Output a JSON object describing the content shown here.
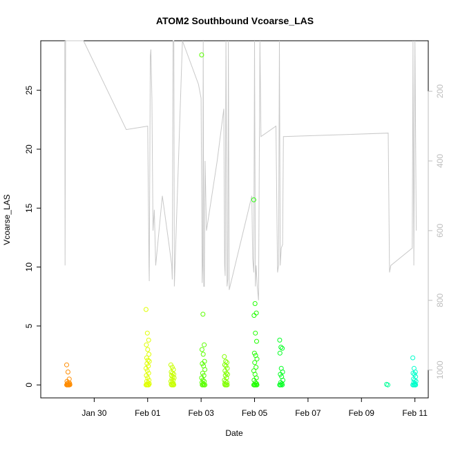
{
  "chart_data": {
    "type": "scatter",
    "title": "ATOM2 Southbound Vcoarse_LAS",
    "xlabel": "Date",
    "ylabel": "Vcoarse_LAS",
    "xlim": [
      "Jan 28 00:00",
      "Feb 11 12:00"
    ],
    "ylim": [
      -1.1,
      29.2
    ],
    "x_ticks": [
      {
        "label": "Jan 30",
        "day": 2
      },
      {
        "label": "Feb 01",
        "day": 4
      },
      {
        "label": "Feb 03",
        "day": 6
      },
      {
        "label": "Feb 05",
        "day": 8
      },
      {
        "label": "Feb 07",
        "day": 10
      },
      {
        "label": "Feb 09",
        "day": 12
      },
      {
        "label": "Feb 11",
        "day": 14
      }
    ],
    "y_ticks": [
      0,
      5,
      10,
      15,
      20,
      25
    ],
    "right_axis": {
      "ticks": [
        200,
        400,
        600,
        800,
        1000
      ],
      "range_reversed": [
        55,
        1080
      ],
      "color": "#bdbdbd"
    },
    "grid": false,
    "legend": "none",
    "point_colors": {
      "jan29": "#ff8c00",
      "feb01": "#e0ff00",
      "feb02": "#c8ff00",
      "feb03": "#5aff00",
      "feb04": "#80ff00",
      "feb05": "#20ff00",
      "feb06": "#00ff20",
      "feb10": "#00ff99",
      "feb11": "#00ffcc"
    },
    "scatter_groups": [
      {
        "color_key": "jan29",
        "day": 1.03,
        "values": [
          1.7,
          1.1,
          0.5,
          0.3,
          0.2,
          0.15,
          0.1,
          0.05,
          0.02,
          0.01,
          0,
          0,
          0,
          0,
          0
        ]
      },
      {
        "color_key": "feb01",
        "day": 4.0,
        "values": [
          6.4,
          4.4,
          3.8,
          3.4,
          3.0,
          2.6,
          2.3,
          2.1,
          2.0,
          1.8,
          1.6,
          1.4,
          1.2,
          1.0,
          0.8,
          0.6,
          0.4,
          0.3,
          0.2,
          0.1,
          0.05,
          0,
          0,
          0,
          0,
          0
        ]
      },
      {
        "color_key": "feb02",
        "day": 4.93,
        "values": [
          1.7,
          1.5,
          1.3,
          1.1,
          1.0,
          0.9,
          0.8,
          0.7,
          0.6,
          0.5,
          0.4,
          0.3,
          0.2,
          0.1,
          0.05,
          0,
          0,
          0,
          0
        ]
      },
      {
        "color_key": "feb03",
        "day": 6.08,
        "values": [
          28.0,
          6.0,
          3.4,
          3.0,
          2.6,
          2.0,
          1.8,
          1.6,
          1.3,
          1.0,
          0.8,
          0.6,
          0.4,
          0.3,
          0.2,
          0.1,
          0,
          0,
          0,
          0,
          0
        ]
      },
      {
        "color_key": "feb04",
        "day": 6.93,
        "values": [
          2.4,
          2.0,
          1.9,
          1.7,
          1.6,
          1.4,
          1.2,
          1.0,
          0.9,
          0.8,
          0.6,
          0.4,
          0.3,
          0.2,
          0.1,
          0,
          0,
          0,
          0
        ]
      },
      {
        "color_key": "feb05",
        "day": 8.03,
        "values": [
          15.7,
          6.9,
          6.1,
          5.9,
          4.4,
          3.7,
          2.7,
          2.5,
          2.2,
          1.9,
          1.5,
          1.2,
          0.9,
          0.6,
          0.4,
          0.2,
          0.1,
          0,
          0,
          0,
          0,
          0,
          0
        ]
      },
      {
        "color_key": "feb06",
        "day": 9.0,
        "values": [
          3.8,
          3.2,
          3.1,
          2.7,
          1.4,
          1.1,
          0.9,
          0.7,
          0.4,
          0.2,
          0.1,
          0,
          0,
          0,
          0
        ]
      },
      {
        "color_key": "feb10",
        "day": 13.0,
        "values": [
          0.05,
          0.0
        ]
      },
      {
        "color_key": "feb11",
        "day": 13.98,
        "values": [
          2.3,
          1.4,
          1.1,
          1.0,
          0.9,
          0.7,
          0.5,
          0.4,
          0.3,
          0.2,
          0.1,
          0,
          0,
          0,
          0,
          0,
          0
        ]
      }
    ],
    "altitude_line": {
      "color": "#c8c8c8",
      "points": [
        [
          0.9,
          0
        ],
        [
          0.91,
          700
        ],
        [
          0.93,
          0
        ],
        [
          1.6,
          30
        ],
        [
          3.2,
          310
        ],
        [
          4.0,
          300
        ],
        [
          4.05,
          700
        ],
        [
          4.06,
          745
        ],
        [
          4.1,
          100
        ],
        [
          4.12,
          80
        ],
        [
          4.16,
          220
        ],
        [
          4.2,
          600
        ],
        [
          4.25,
          540
        ],
        [
          4.3,
          700
        ],
        [
          4.55,
          500
        ],
        [
          4.8,
          640
        ],
        [
          4.9,
          700
        ],
        [
          4.92,
          740
        ],
        [
          4.95,
          0
        ],
        [
          4.98,
          0
        ],
        [
          5.0,
          760
        ],
        [
          5.3,
          55
        ],
        [
          5.9,
          180
        ],
        [
          6.0,
          220
        ],
        [
          6.04,
          750
        ],
        [
          6.06,
          700
        ],
        [
          6.08,
          0
        ],
        [
          6.1,
          760
        ],
        [
          6.12,
          760
        ],
        [
          6.15,
          400
        ],
        [
          6.2,
          600
        ],
        [
          6.6,
          400
        ],
        [
          6.85,
          250
        ],
        [
          6.88,
          700
        ],
        [
          6.9,
          730
        ],
        [
          6.93,
          0
        ],
        [
          6.97,
          760
        ],
        [
          7.0,
          740
        ],
        [
          7.02,
          0
        ],
        [
          7.05,
          770
        ],
        [
          7.9,
          500
        ],
        [
          7.93,
          680
        ],
        [
          7.97,
          720
        ],
        [
          8.0,
          0
        ],
        [
          8.03,
          760
        ],
        [
          8.06,
          700
        ],
        [
          8.1,
          760
        ],
        [
          8.15,
          800
        ],
        [
          8.2,
          0
        ],
        [
          8.24,
          330
        ],
        [
          8.8,
          300
        ],
        [
          8.86,
          720
        ],
        [
          8.9,
          700
        ],
        [
          8.93,
          0
        ],
        [
          8.96,
          700
        ],
        [
          9.0,
          650
        ],
        [
          9.05,
          640
        ],
        [
          9.08,
          330
        ],
        [
          13.0,
          320
        ],
        [
          13.05,
          720
        ],
        [
          13.1,
          700
        ],
        [
          13.9,
          650
        ],
        [
          13.93,
          0
        ],
        [
          13.96,
          700
        ],
        [
          14.0,
          0
        ],
        [
          14.05,
          600
        ]
      ]
    }
  }
}
